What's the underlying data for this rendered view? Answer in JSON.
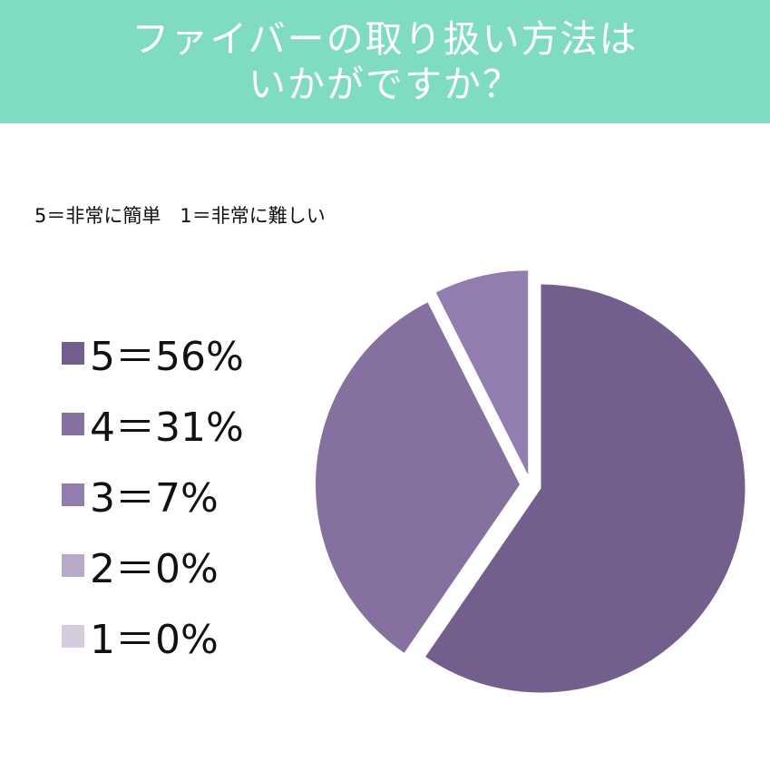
{
  "header": {
    "title_line1": "ファイバーの取り扱い方法は",
    "title_line2": "いかがですか？"
  },
  "subtitle": "5＝非常に簡単　1＝非常に難しい",
  "chart_data": {
    "type": "pie",
    "title": "ファイバーの取り扱い方法はいかがですか？",
    "categories": [
      "5",
      "4",
      "3",
      "2",
      "1"
    ],
    "values": [
      56,
      31,
      7,
      0,
      0
    ],
    "unit": "%",
    "legend_labels": [
      "5＝56%",
      "4＝31%",
      "3＝7%",
      "2＝0%",
      "1＝0%"
    ],
    "colors": [
      "#735e8d",
      "#8670a0",
      "#937cb0",
      "#b8aac8",
      "#d4ccdd"
    ],
    "legend_position": "left"
  }
}
